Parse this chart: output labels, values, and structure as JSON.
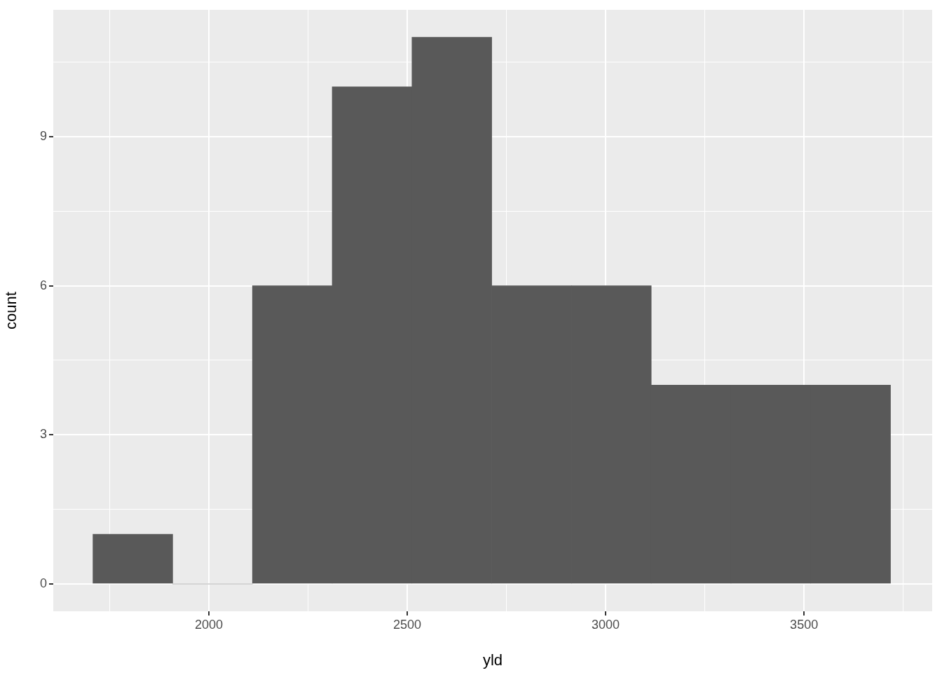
{
  "chart_data": {
    "type": "histogram",
    "xlabel": "yld",
    "ylabel": "count",
    "bins": [
      1708,
      1909,
      2110,
      2311,
      2512,
      2713,
      2914,
      3115,
      3316,
      3517,
      3718
    ],
    "values": [
      1,
      0,
      6,
      10,
      11,
      6,
      6,
      4,
      4,
      4
    ],
    "color": "#595959",
    "xlim": [
      1608,
      3823
    ],
    "xticks": [
      {
        "value": 1750,
        "label": null
      },
      2000,
      {
        "value": 2250,
        "label": null
      },
      2500,
      {
        "value": 2750,
        "label": null
      },
      3000,
      {
        "value": 3250,
        "label": null
      },
      3500,
      {
        "value": 3750,
        "label": null
      }
    ],
    "ylim": [
      -0.55,
      11.55
    ],
    "yticks": [
      0,
      {
        "value": 1.5,
        "label": null
      },
      3,
      {
        "value": 4.5,
        "label": null
      },
      6,
      {
        "value": 7.5,
        "label": null
      },
      9,
      {
        "value": 10.5,
        "label": null
      }
    ],
    "grid": true,
    "legend": false
  }
}
